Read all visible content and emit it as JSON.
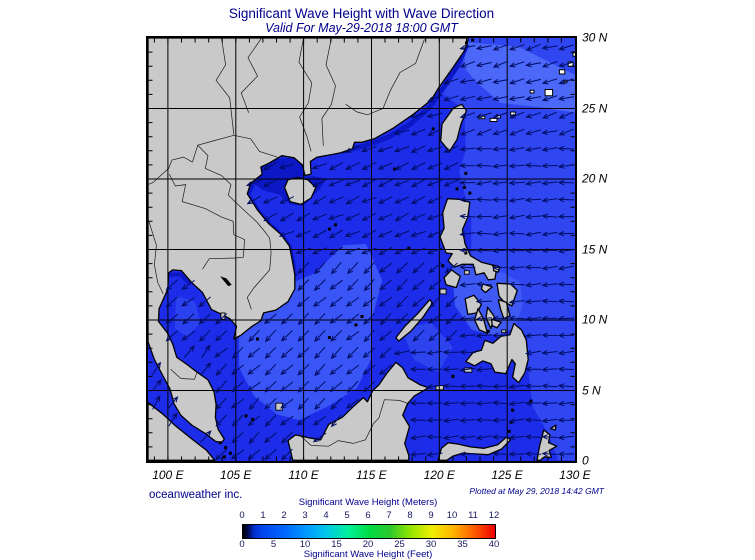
{
  "header": {
    "title": "Significant Wave Height with Wave Direction",
    "subtitle": "Valid For May-29-2018 18:00 GMT"
  },
  "map": {
    "lat_labels": [
      "30 N",
      "25 N",
      "20 N",
      "15 N",
      "10 N",
      "5 N",
      "0"
    ],
    "lon_labels": [
      "100 E",
      "105 E",
      "110 E",
      "115 E",
      "120 E",
      "125 E",
      "130 E"
    ]
  },
  "footer": {
    "attribution": "oceanweather inc.",
    "plotted_at": "Plotted at May 29, 2018 14:42 GMT",
    "legend": {
      "top_title": "Significant Wave Height (Meters)",
      "bottom_title": "Significant Wave Height (Feet)",
      "meters_ticks": [
        "0",
        "1",
        "2",
        "3",
        "4",
        "5",
        "6",
        "7",
        "8",
        "9",
        "10",
        "11",
        "12"
      ],
      "feet_ticks": [
        "0",
        "5",
        "10",
        "15",
        "20",
        "25",
        "30",
        "35",
        "40"
      ]
    }
  },
  "colors": {
    "title_navy": "#00008b",
    "land_gray": "#c9c9c9",
    "ocean_base": "#1d2ce8",
    "ocean_light": "#3a55f5",
    "ocean_lighter": "#4b68f8",
    "ocean_dark": "#0c17c6",
    "arrow_navy": "#000d62"
  }
}
